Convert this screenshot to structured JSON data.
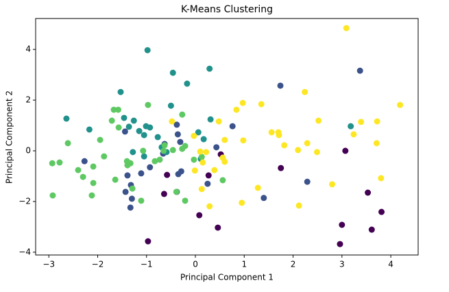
{
  "chart_data": {
    "type": "scatter",
    "title": "K-Means Clustering",
    "x_label": "Principal Component 1",
    "y_label": "Principal Component 2",
    "xlim": [
      -3.27,
      4.56
    ],
    "ylim": [
      -4.11,
      5.22
    ],
    "xticks": [
      {
        "value": -3,
        "label": "−3"
      },
      {
        "value": -2,
        "label": "−2"
      },
      {
        "value": -1,
        "label": "−1"
      },
      0,
      1,
      2,
      3,
      4
    ],
    "yticks": [
      {
        "value": -4,
        "label": "−4"
      },
      {
        "value": -2,
        "label": "−2"
      },
      0,
      2,
      4
    ],
    "grid": false,
    "series": [
      {
        "color": "#440154",
        "x": [
          -0.97,
          0.08,
          0.46,
          -0.58,
          -0.64,
          0.27,
          0.52,
          3.07,
          1.75,
          3.0,
          2.96,
          3.61,
          3.53,
          3.81
        ],
        "y": [
          -3.57,
          -2.54,
          -3.03,
          -0.95,
          -1.7,
          -0.97,
          -0.14,
          0,
          -0.68,
          -2.92,
          -3.68,
          -3.11,
          -1.65,
          -2.41
        ]
      },
      {
        "color": "#3b528b",
        "x": [
          3.37,
          1.74,
          1.4,
          2.29,
          0.76,
          0.43,
          0.25,
          -0.38,
          -0.36,
          -0.31,
          -0.29,
          -0.38,
          -0.35,
          -0.93,
          -1.11,
          -1.32,
          -1.43,
          -1.3,
          -1.33,
          -1.39,
          -2.27,
          -1.44,
          -0.66,
          -0.63
        ],
        "y": [
          3.16,
          2.57,
          -1.86,
          -1.22,
          0.97,
          0.14,
          -1.3,
          1.03,
          0.65,
          0.35,
          -0.81,
          -1.62,
          -0.92,
          -0.65,
          -0.89,
          -1.35,
          -1.62,
          -1.89,
          -2.24,
          -0.97,
          -0.41,
          0.76,
          -0.11,
          0.27
        ]
      },
      {
        "color": "#21918c",
        "x": [
          -0.98,
          -0.46,
          -0.17,
          0.29,
          -1.53,
          -2.64,
          -2.17,
          -0.5,
          0.31,
          3.18,
          -1.46,
          -1.36,
          -1.26,
          -1.15,
          -1.01,
          -0.93,
          -1.05,
          -0.77,
          -1.28,
          -0.69,
          -0.59,
          0.06,
          0.17,
          -1.05,
          0.11
        ],
        "y": [
          3.97,
          3.08,
          2.65,
          3.24,
          2.32,
          1.27,
          0.84,
          1.78,
          1.24,
          0.97,
          1.3,
          0.95,
          1.19,
          0.78,
          0.97,
          0.92,
          0.62,
          0.54,
          -0.05,
          0.14,
          -0.05,
          0.73,
          0.46,
          -0.22,
          -0.32
        ]
      },
      {
        "color": "#5ec962",
        "x": [
          -0.97,
          -1.67,
          -1.58,
          -1.71,
          -1.57,
          -0.27,
          -1.95,
          -2.61,
          -2.93,
          -2.78,
          -2.4,
          -2.3,
          -2.09,
          -1.87,
          -2.09,
          -2.12,
          -2.92,
          -1.64,
          -1.4,
          -1.33,
          -1.39,
          -1.07,
          -0.83,
          -0.73,
          -0.63,
          -0.46,
          -0.27,
          -0.21,
          -0.03,
          -1.11,
          -0.21,
          -0.39,
          0.13,
          0.56,
          -1.29,
          -0.65
        ],
        "y": [
          1.81,
          1.62,
          1.62,
          1.19,
          0.92,
          1.43,
          0.43,
          0.3,
          -0.49,
          -0.46,
          -0.76,
          -1.03,
          -0.62,
          -0.22,
          -1.27,
          -1.76,
          -1.76,
          -1.14,
          -0.41,
          -0.49,
          -0.57,
          0,
          -0.41,
          -0.35,
          0.22,
          0.03,
          0.08,
          0.19,
          -0.35,
          -1.97,
          -1.97,
          -1.62,
          -0.24,
          -1.16,
          -1.49,
          0
        ]
      },
      {
        "color": "#fde725",
        "x": [
          3.09,
          2.24,
          0.97,
          0.84,
          1.35,
          4.19,
          2.52,
          3.39,
          3.72,
          0.48,
          1.56,
          1.7,
          1.71,
          1.82,
          0.98,
          0.6,
          3.24,
          2.29,
          2.1,
          2.49,
          3.71,
          3.8,
          2.8,
          1.28,
          0.95,
          2.12,
          0.29,
          -0.48,
          -0.03,
          0.1,
          0.22,
          0.15,
          0.13,
          -0.01,
          0.39,
          0.56,
          0.6
        ],
        "y": [
          4.84,
          2.32,
          1.89,
          1.62,
          1.84,
          1.81,
          1.19,
          1.14,
          1.16,
          1.16,
          0.73,
          0.73,
          0.62,
          0.22,
          0.41,
          0.43,
          0.65,
          0.3,
          0.03,
          -0.05,
          0.3,
          -1.08,
          -1.32,
          -1.46,
          -2.05,
          -2.16,
          -2.19,
          1.16,
          0.59,
          -0.03,
          -0.05,
          -0.46,
          -1.51,
          -0.78,
          -0.76,
          -0.27,
          -0.43
        ]
      }
    ]
  }
}
